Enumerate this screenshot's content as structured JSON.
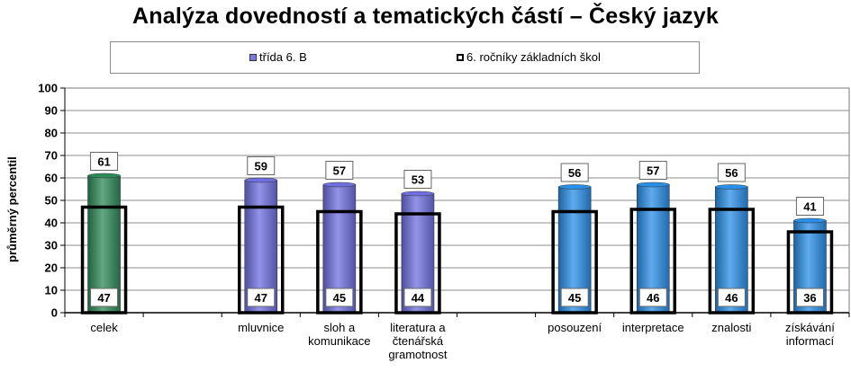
{
  "chart_data": {
    "type": "bar",
    "title": "Analýza dovedností a tematických částí – Český jazyk",
    "ylabel": "průměrný percentil",
    "ylim": [
      0,
      100
    ],
    "yticks": [
      0,
      10,
      20,
      30,
      40,
      50,
      60,
      70,
      80,
      90,
      100
    ],
    "grid": true,
    "legend_position": "top",
    "categories": [
      "celek",
      "mluvnice",
      "sloh a komunikace",
      "literatura a čtenářská gramotnost",
      "posouzení",
      "interpretace",
      "znalosti",
      "získávání informací"
    ],
    "category_label_lines": [
      [
        "celek"
      ],
      [
        "mluvnice"
      ],
      [
        "sloh a",
        "komunikace"
      ],
      [
        "literatura a",
        "čtenářská",
        "gramotnost"
      ],
      [
        "posouzení"
      ],
      [
        "interpretace"
      ],
      [
        "znalosti"
      ],
      [
        "získávání",
        "informací"
      ]
    ],
    "series": [
      {
        "name": "třída  6. B",
        "values": [
          61,
          59,
          57,
          53,
          56,
          57,
          56,
          41
        ]
      },
      {
        "name": "6. ročníky základních škol",
        "values": [
          47,
          47,
          45,
          44,
          45,
          46,
          46,
          36
        ]
      }
    ],
    "bar_colors": [
      "#2e8a57",
      "#6f6fe0",
      "#6f6fe0",
      "#6f6fe0",
      "#2a8fe8",
      "#2a8fe8",
      "#2a8fe8",
      "#2a8fe8"
    ]
  }
}
